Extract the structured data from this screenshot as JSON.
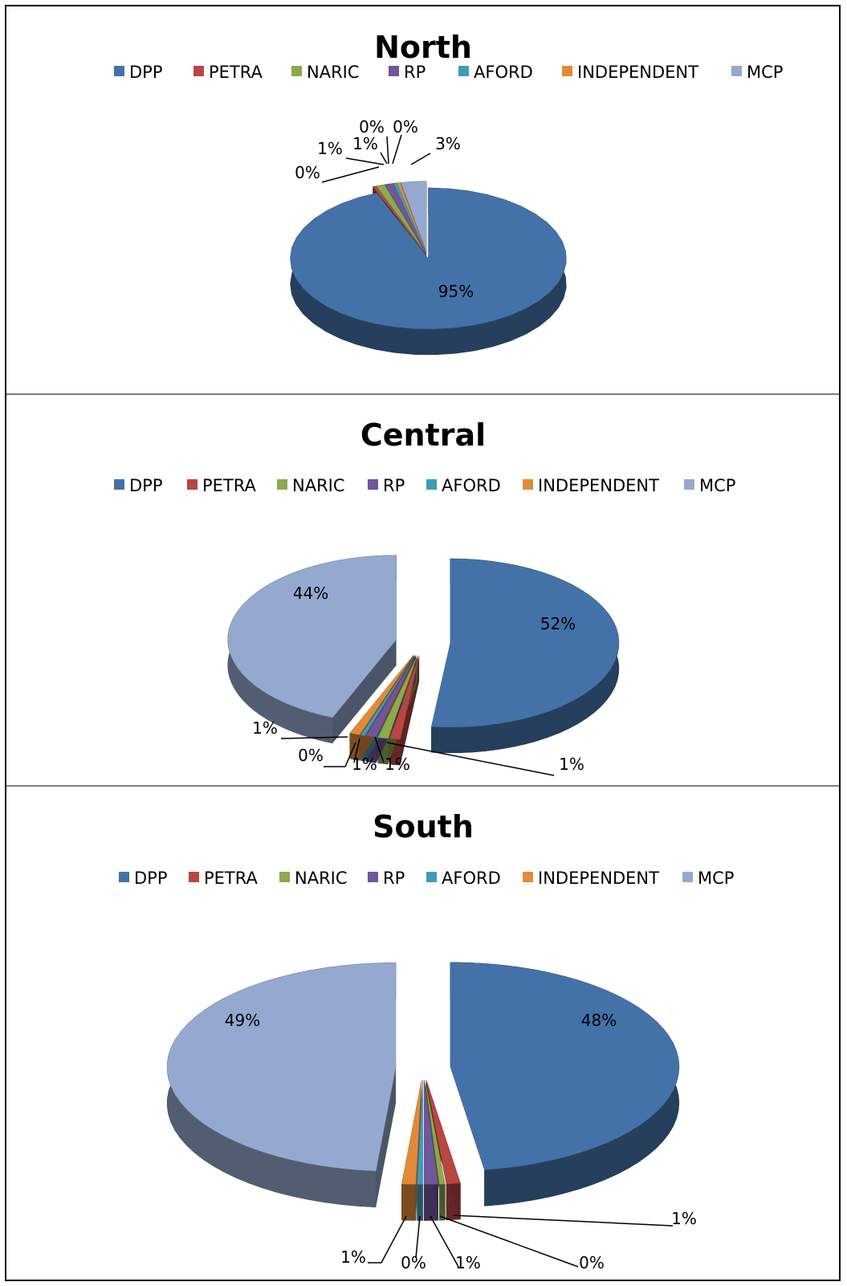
{
  "legend": [
    "DPP",
    "PETRA",
    "NARIC",
    "RP",
    "AFORD",
    "INDEPENDENT",
    "MCP"
  ],
  "colors": [
    "#4472a8",
    "#b84643",
    "#8aaa4c",
    "#70569a",
    "#3d9db8",
    "#e08a3a",
    "#95a9d0"
  ],
  "chart_data": [
    {
      "type": "pie",
      "title": "North",
      "categories": [
        "DPP",
        "PETRA",
        "NARIC",
        "RP",
        "AFORD",
        "INDEPENDENT",
        "MCP"
      ],
      "values": [
        95,
        0,
        1,
        1,
        0,
        0,
        3
      ],
      "labels": [
        "95%",
        "0%",
        "1%",
        "1%",
        "0%",
        "0%",
        "3%"
      ]
    },
    {
      "type": "pie",
      "title": "Central",
      "categories": [
        "DPP",
        "PETRA",
        "NARIC",
        "RP",
        "AFORD",
        "INDEPENDENT",
        "MCP"
      ],
      "values": [
        52,
        1,
        1,
        1,
        0,
        1,
        44
      ],
      "labels": [
        "52%",
        "1%",
        "1%",
        "1%",
        "0%",
        "1%",
        "44%"
      ]
    },
    {
      "type": "pie",
      "title": "South",
      "categories": [
        "DPP",
        "PETRA",
        "NARIC",
        "RP",
        "AFORD",
        "INDEPENDENT",
        "MCP"
      ],
      "values": [
        48,
        1,
        0,
        1,
        0,
        1,
        49
      ],
      "labels": [
        "48%",
        "1%",
        "0%",
        "1%",
        "0%",
        "1%",
        "49%"
      ]
    }
  ]
}
